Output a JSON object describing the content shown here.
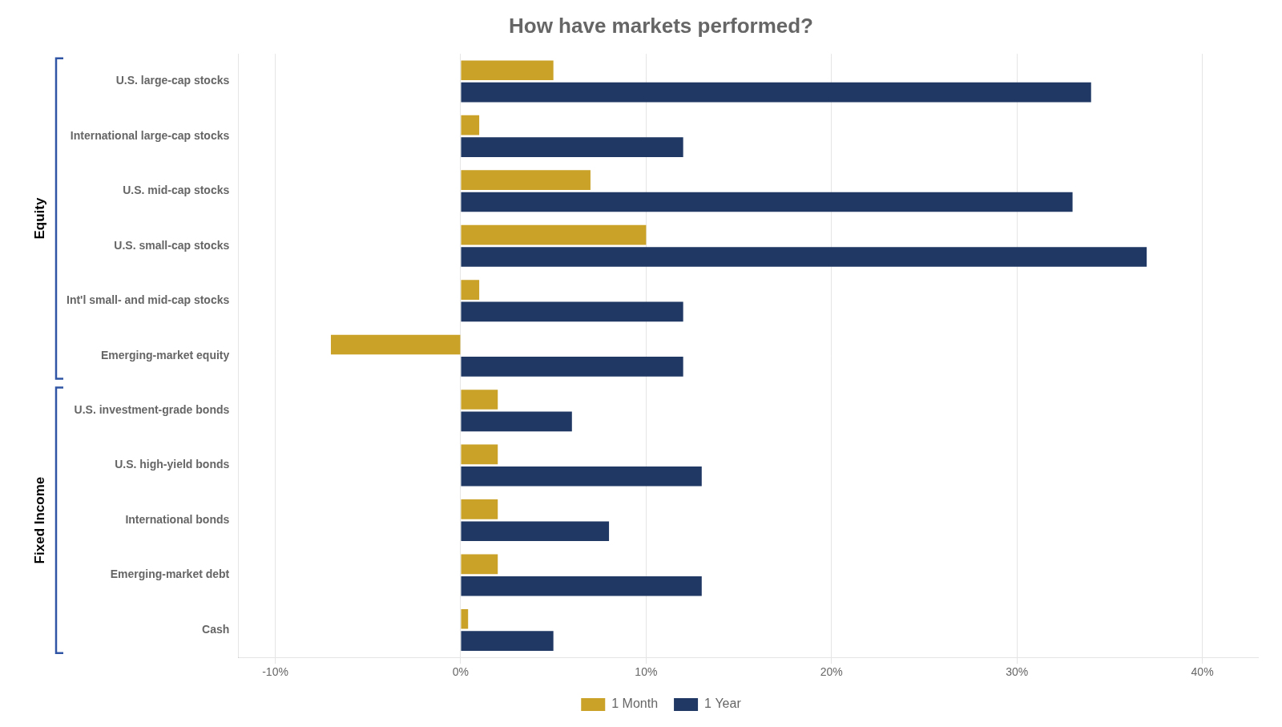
{
  "chart_data": {
    "type": "bar",
    "orientation": "horizontal",
    "title": "How have markets performed?",
    "categories": [
      "U.S. large-cap stocks",
      "International large-cap stocks",
      "U.S. mid-cap stocks",
      "U.S. small-cap stocks",
      "Int'l small- and mid-cap stocks",
      "Emerging-market equity",
      "U.S. investment-grade bonds",
      "U.S. high-yield bonds",
      "International bonds",
      "Emerging-market debt",
      "Cash"
    ],
    "series": [
      {
        "name": "1 Month",
        "color": "#C9A227",
        "values": [
          5.0,
          1.0,
          7.0,
          10.0,
          1.0,
          -7.0,
          2.0,
          2.0,
          2.0,
          2.0,
          0.4
        ]
      },
      {
        "name": "1 Year",
        "color": "#1F3864",
        "values": [
          34.0,
          12.0,
          33.0,
          37.0,
          12.0,
          12.0,
          6.0,
          13.0,
          8.0,
          13.0,
          5.0
        ]
      }
    ],
    "xlim": [
      -12,
      43
    ],
    "xticks": [
      {
        "value": -10,
        "label": "-10%"
      },
      {
        "value": 0,
        "label": "0%"
      },
      {
        "value": 10,
        "label": "10%"
      },
      {
        "value": 20,
        "label": "20%"
      },
      {
        "value": 30,
        "label": "30%"
      },
      {
        "value": 40,
        "label": "40%"
      }
    ],
    "grid": true,
    "legend": "bottom",
    "annotations": [
      {
        "text": "Equity",
        "from": "U.S. large-cap stocks",
        "to": "Emerging-market equity",
        "color": "#3055A4"
      },
      {
        "text": "Fixed Income",
        "from": "U.S. investment-grade bonds",
        "to": "Cash",
        "color": "#3055A4"
      }
    ]
  }
}
